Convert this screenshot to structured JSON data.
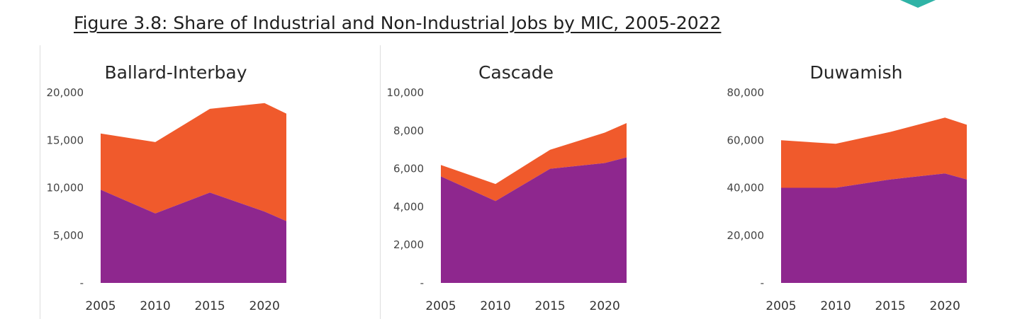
{
  "figure_title": "Figure 3.8: Share of Industrial and Non-Industrial Jobs by MIC, 2005-2022",
  "colors": {
    "industrial": "#8e278e",
    "non_industrial": "#f05a2c",
    "accent": "#2fb3a6"
  },
  "chart_data": [
    {
      "type": "area",
      "stacked": true,
      "title": "Ballard-Interbay",
      "x": [
        2005,
        2010,
        2015,
        2020,
        2022
      ],
      "xticks": [
        "2005",
        "2010",
        "2015",
        "2020"
      ],
      "yticks": [
        "-",
        "5,000",
        "10,000",
        "15,000",
        "20,000"
      ],
      "ylim": [
        0,
        20000
      ],
      "xlabel": "",
      "ylabel": "",
      "legend": "none",
      "grid": false,
      "series": [
        {
          "key": "industrial",
          "color": "#8e278e",
          "values": [
            9800,
            7300,
            9500,
            7500,
            6500
          ]
        },
        {
          "key": "non_industrial",
          "color": "#f05a2c",
          "values": [
            5900,
            7500,
            8800,
            11400,
            11300
          ]
        }
      ]
    },
    {
      "type": "area",
      "stacked": true,
      "title": "Cascade",
      "x": [
        2005,
        2010,
        2015,
        2020,
        2022
      ],
      "xticks": [
        "2005",
        "2010",
        "2015",
        "2020"
      ],
      "yticks": [
        "-",
        "2,000",
        "4,000",
        "6,000",
        "8,000",
        "10,000"
      ],
      "ylim": [
        0,
        10000
      ],
      "xlabel": "",
      "ylabel": "",
      "legend": "none",
      "grid": false,
      "series": [
        {
          "key": "industrial",
          "color": "#8e278e",
          "values": [
            5600,
            4300,
            6000,
            6300,
            6600
          ]
        },
        {
          "key": "non_industrial",
          "color": "#f05a2c",
          "values": [
            600,
            900,
            1000,
            1600,
            1800
          ]
        }
      ]
    },
    {
      "type": "area",
      "stacked": true,
      "title": "Duwamish",
      "x": [
        2005,
        2010,
        2015,
        2020,
        2022
      ],
      "xticks": [
        "2005",
        "2010",
        "2015",
        "2020"
      ],
      "yticks": [
        "-",
        "20,000",
        "40,000",
        "60,000",
        "80,000"
      ],
      "ylim": [
        0,
        80000
      ],
      "xlabel": "",
      "ylabel": "",
      "legend": "none",
      "grid": false,
      "series": [
        {
          "key": "industrial",
          "color": "#8e278e",
          "values": [
            40000,
            40000,
            43500,
            46000,
            43500
          ]
        },
        {
          "key": "non_industrial",
          "color": "#f05a2c",
          "values": [
            20000,
            18500,
            20000,
            23500,
            23000
          ]
        }
      ]
    }
  ]
}
